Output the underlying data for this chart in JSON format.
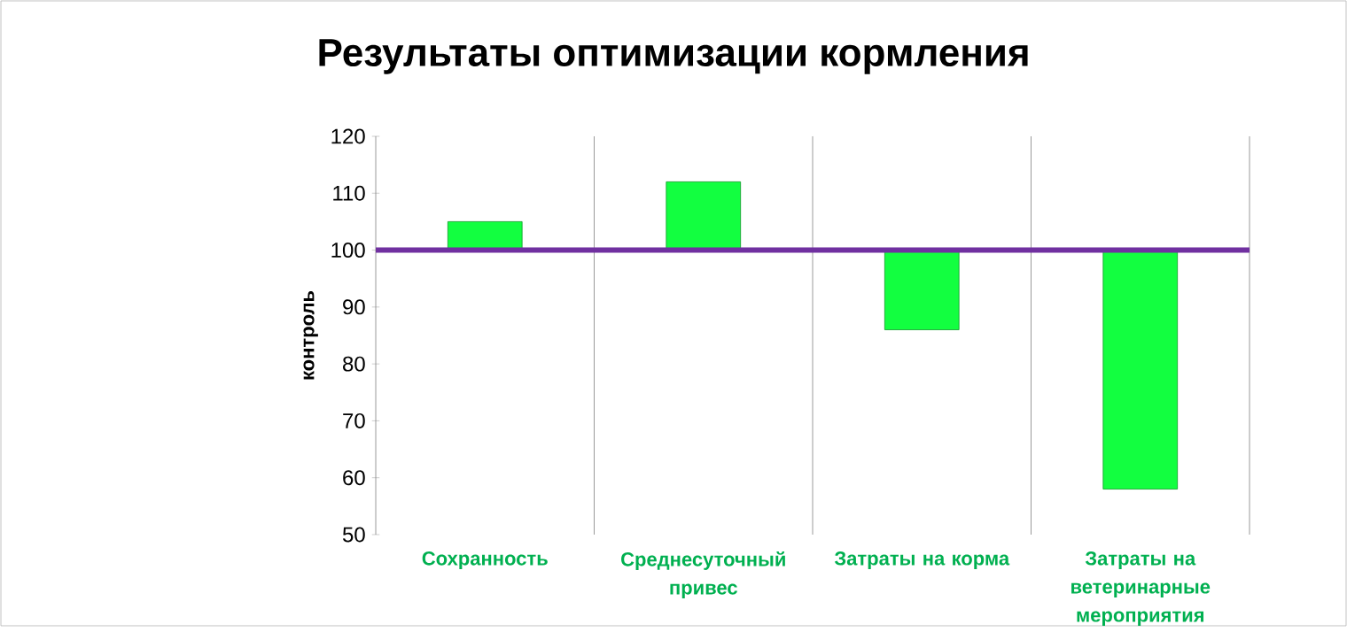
{
  "chart_data": {
    "type": "bar",
    "title": "Результаты оптимизации кормления",
    "ylabel": "контроль",
    "categories": [
      "Сохранность",
      "Среднесуточный привес",
      "Затраты на корма",
      "Затраты на ветеринарные мероприятия"
    ],
    "base": [
      100,
      100,
      100,
      100
    ],
    "values": [
      5,
      12,
      -14,
      -42
    ],
    "color": "#12ff40",
    "ylim": [
      50,
      120
    ],
    "yticks": [
      50,
      60,
      70,
      80,
      90,
      100,
      110,
      120
    ],
    "grid": "x",
    "ref_lines": [
      {
        "axis": "y",
        "value": 100,
        "color": "#7030a0"
      }
    ]
  }
}
